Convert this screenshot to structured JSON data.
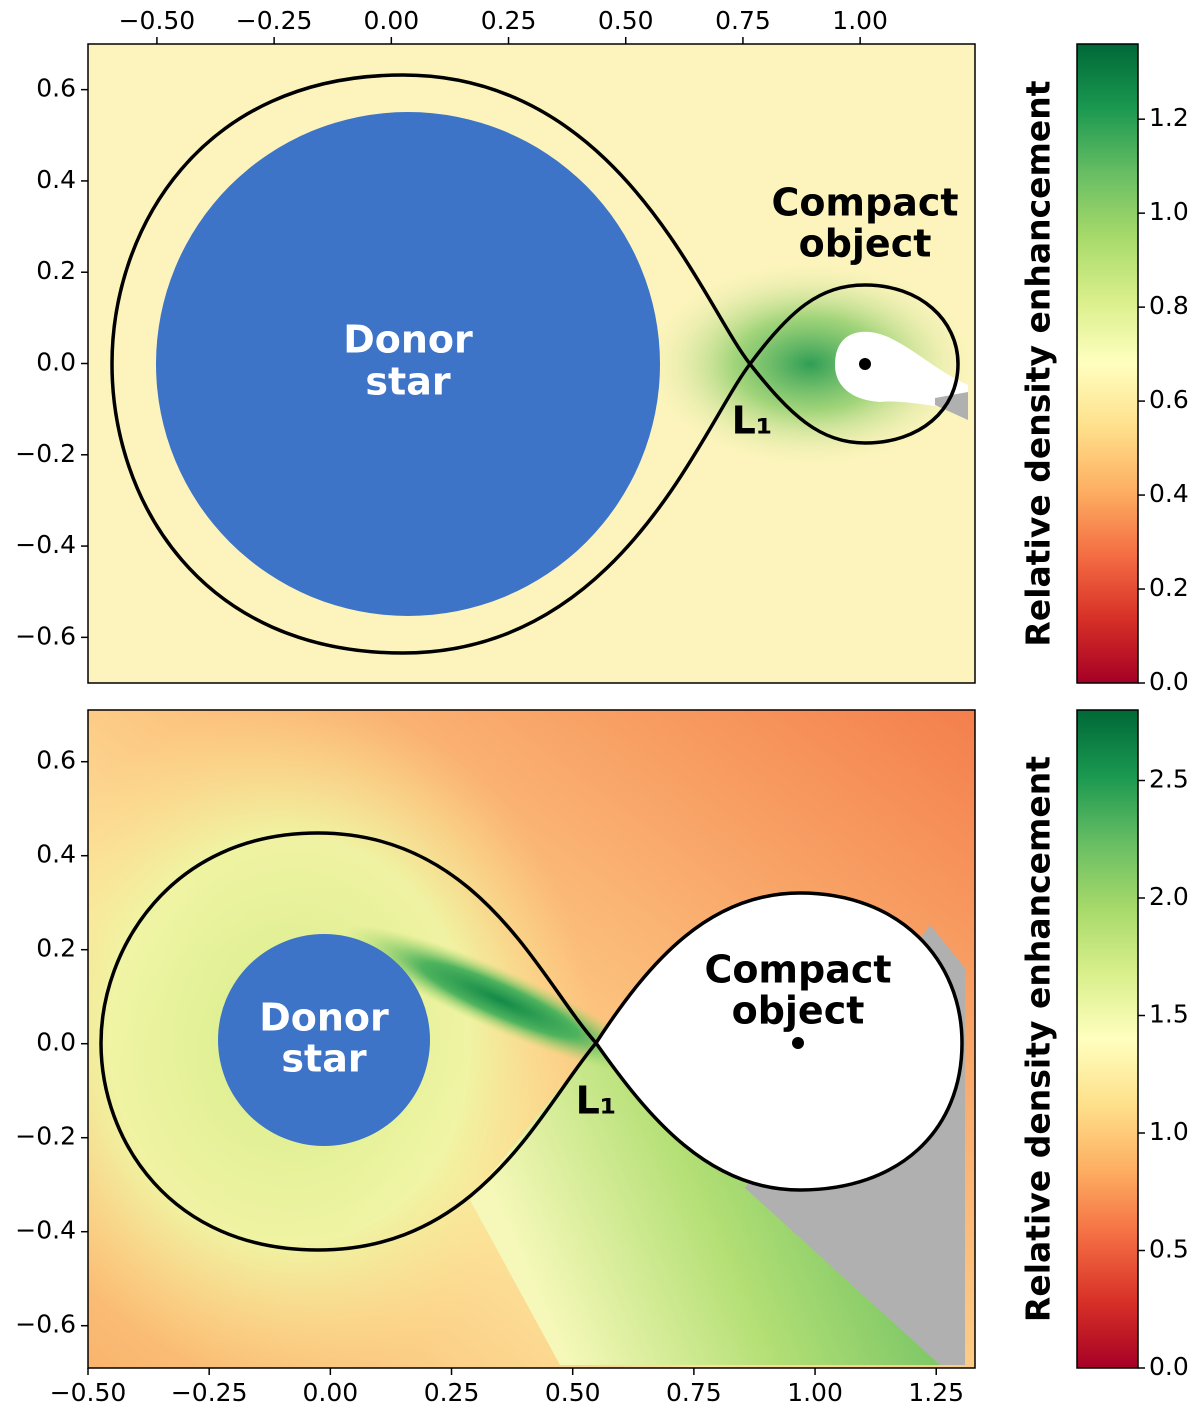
{
  "chart_data": [
    {
      "type": "heatmap",
      "xaxis": "top",
      "xlim": [
        -0.647,
        1.245
      ],
      "ylim": [
        -0.7,
        0.7
      ],
      "xticks": [
        {
          "value": -0.5,
          "label": "−0.50"
        },
        {
          "value": -0.25,
          "label": "−0.25"
        },
        {
          "value": 0,
          "label": "0.00"
        },
        0.25,
        {
          "value": 0.5,
          "label": "0.50"
        },
        0.75,
        {
          "value": 1,
          "label": "1.00"
        }
      ],
      "yticks": [
        0.6,
        0.4,
        0.2,
        {
          "value": 0,
          "label": "0.0"
        },
        {
          "value": -0.2,
          "label": "−0.2"
        },
        {
          "value": -0.4,
          "label": "−0.4"
        },
        {
          "value": -0.6,
          "label": "−0.6"
        }
      ],
      "colorbar": {
        "label": "Relative density enhancement",
        "colormap": "RdYlGn",
        "lim": [
          0,
          1.36
        ],
        "ticks": [
          {
            "value": 0,
            "label": "0.0"
          },
          0.2,
          0.4,
          0.6,
          0.8,
          {
            "value": 1,
            "label": "1.0"
          },
          1.2
        ]
      },
      "annotations": {
        "donor": [
          "Donor",
          "star"
        ],
        "compact": [
          "Compact",
          "object"
        ],
        "l1": "L₁"
      }
    },
    {
      "type": "heatmap",
      "xaxis": "bottom",
      "xlim": [
        -0.5,
        1.33
      ],
      "ylim": [
        -0.69,
        0.71
      ],
      "xticks": [
        {
          "value": -0.5,
          "label": "−0.50"
        },
        {
          "value": -0.25,
          "label": "−0.25"
        },
        {
          "value": 0,
          "label": "0.00"
        },
        0.25,
        {
          "value": 0.5,
          "label": "0.50"
        },
        0.75,
        {
          "value": 1,
          "label": "1.00"
        },
        1.25
      ],
      "yticks": [
        0.6,
        0.4,
        0.2,
        {
          "value": 0,
          "label": "0.0"
        },
        {
          "value": -0.2,
          "label": "−0.2"
        },
        {
          "value": -0.4,
          "label": "−0.4"
        },
        {
          "value": -0.6,
          "label": "−0.6"
        }
      ],
      "colorbar": {
        "label": "Relative density enhancement",
        "colormap": "RdYlGn",
        "lim": [
          0,
          2.8
        ],
        "ticks": [
          {
            "value": 0,
            "label": "0.0"
          },
          0.5,
          {
            "value": 1,
            "label": "1.0"
          },
          1.5,
          {
            "value": 2,
            "label": "2.0"
          },
          2.5
        ]
      },
      "annotations": {
        "donor": [
          "Donor",
          "star"
        ],
        "compact": [
          "Compact",
          "object"
        ],
        "l1": "L₁"
      }
    }
  ]
}
